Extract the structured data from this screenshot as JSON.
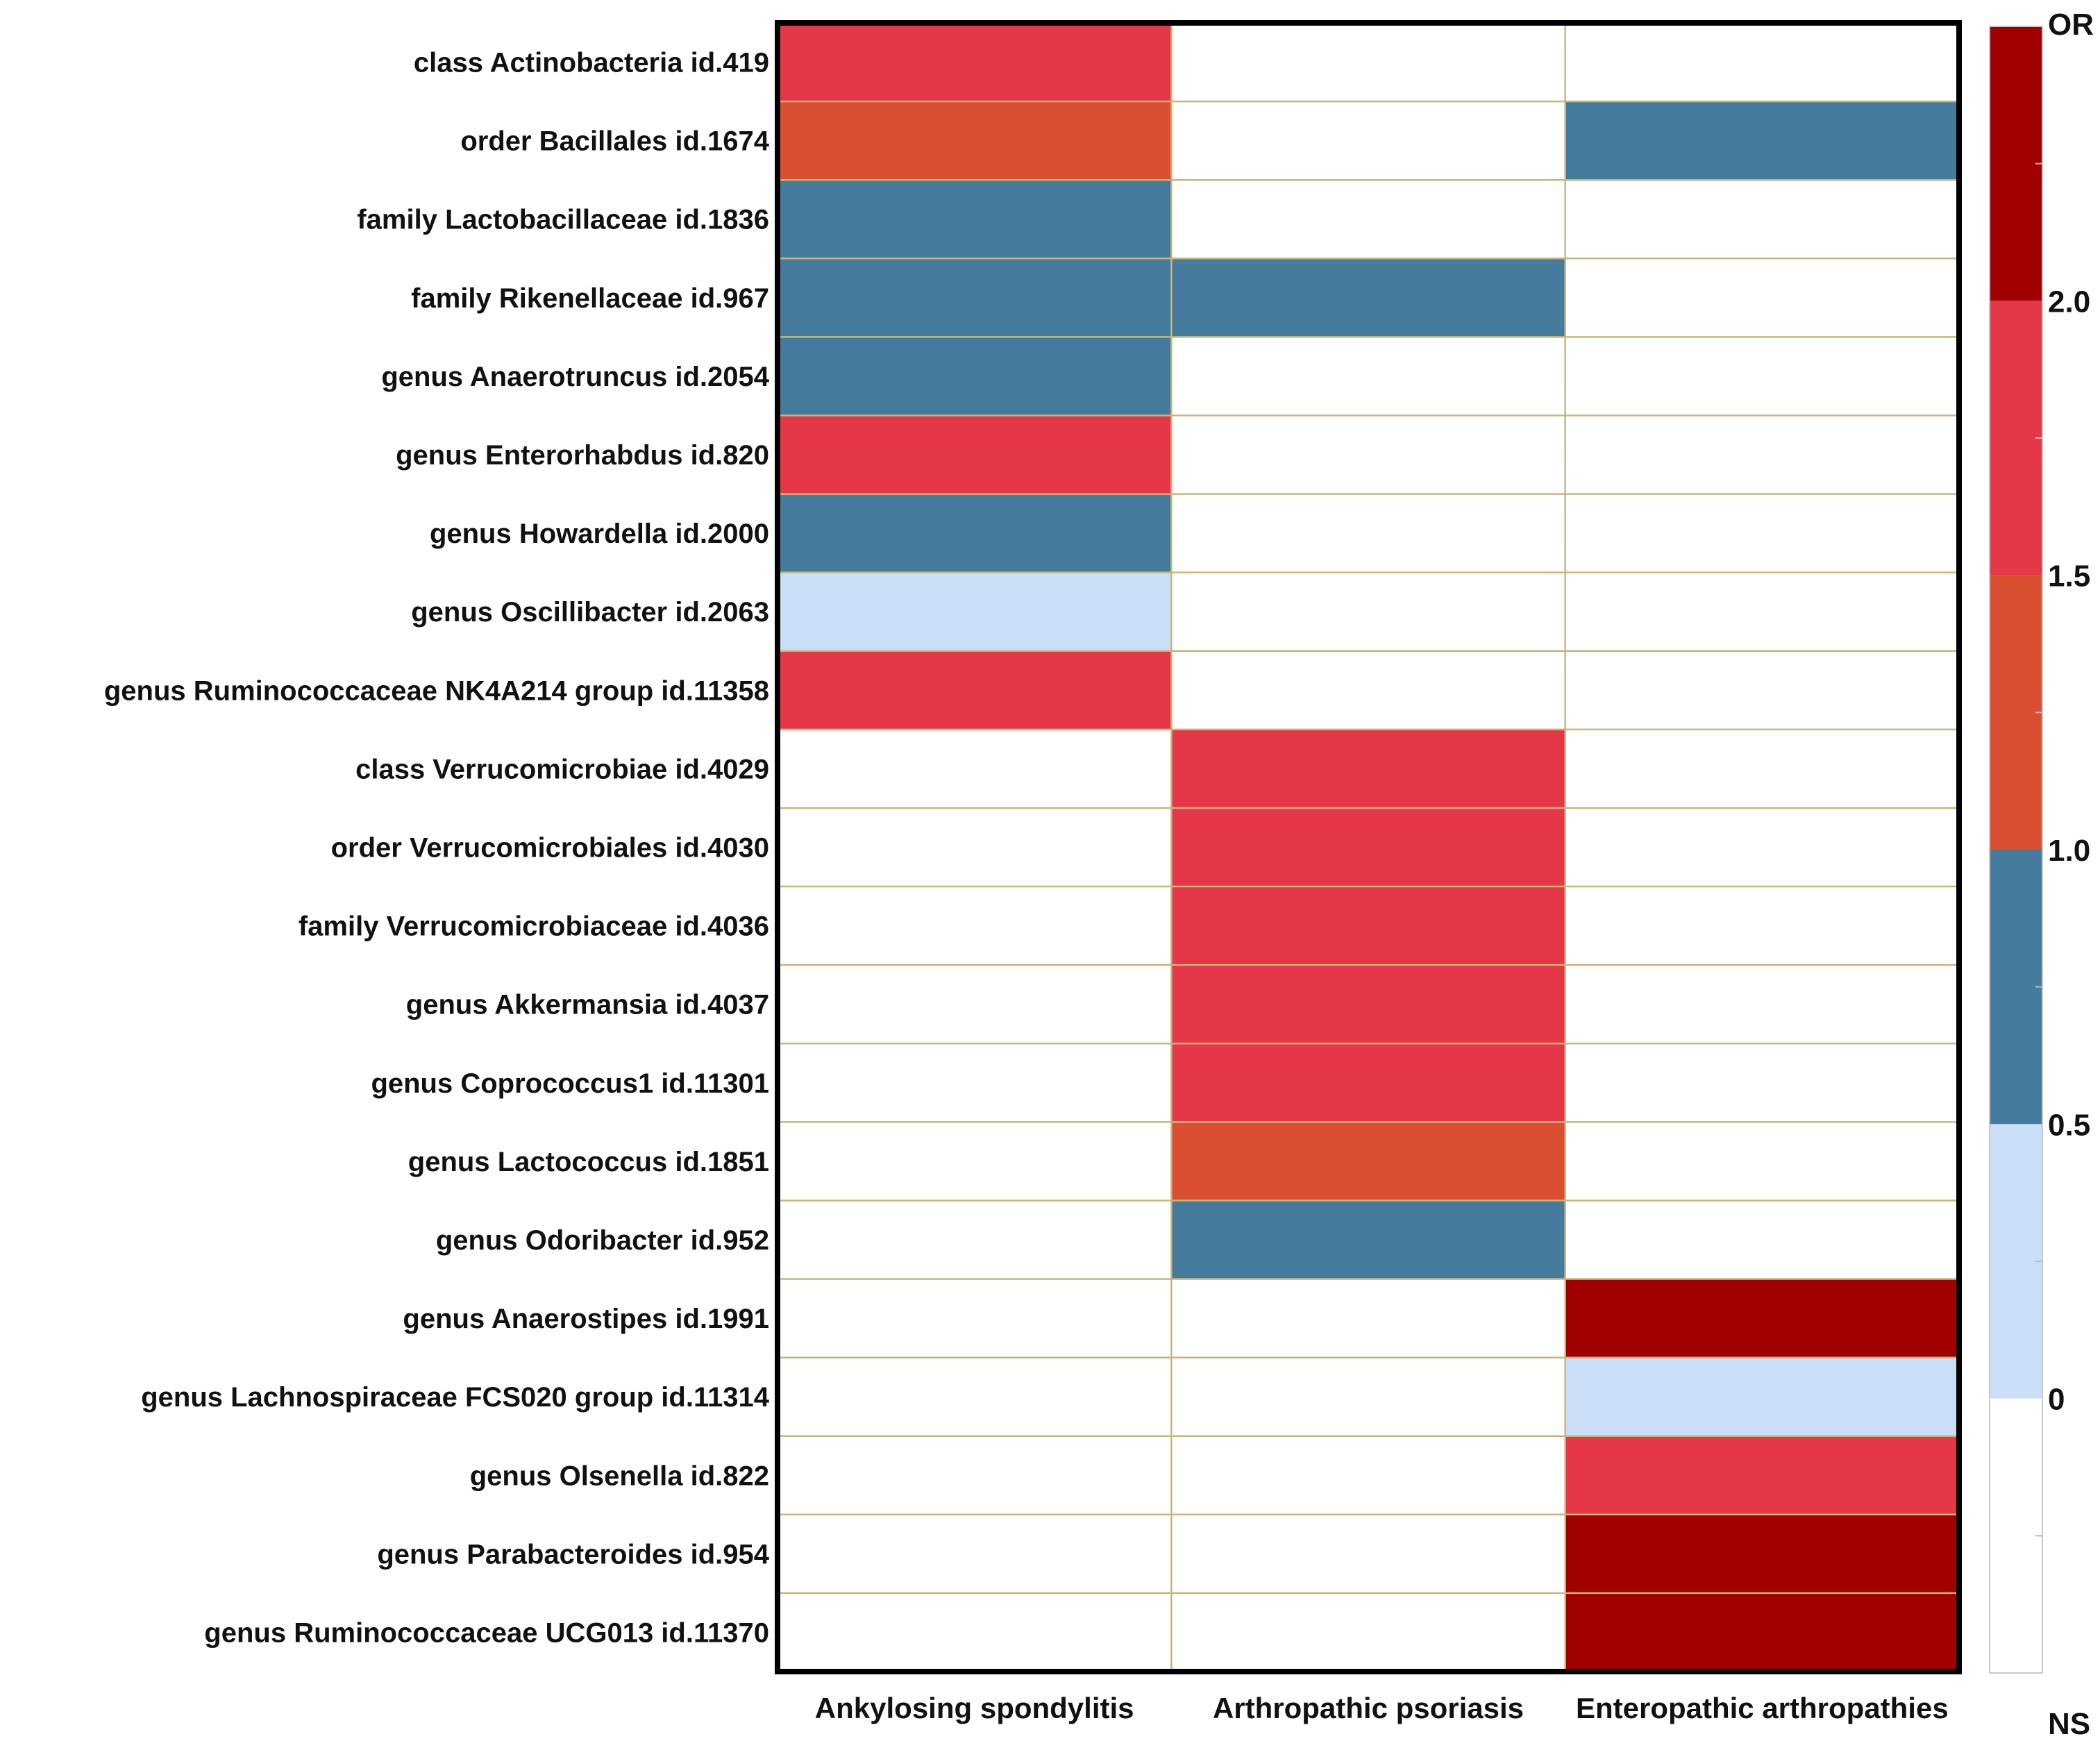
{
  "chart_data": {
    "type": "heatmap",
    "columns": [
      "Ankylosing spondylitis",
      "Arthropathic psoriasis",
      "Enteropathic arthropathies"
    ],
    "rows": [
      "class Actinobacteria id.419",
      "order Bacillales id.1674",
      "family Lactobacillaceae id.1836",
      "family Rikenellaceae id.967",
      "genus Anaerotruncus id.2054",
      "genus Enterorhabdus id.820",
      "genus Howardella id.2000",
      "genus Oscillibacter id.2063",
      "genus Ruminococcaceae NK4A214 group id.11358",
      "class Verrucomicrobiae id.4029",
      "order Verrucomicrobiales id.4030",
      "family Verrucomicrobiaceae id.4036",
      "genus Akkermansia id.4037",
      "genus Coprococcus1 id.11301",
      "genus Lactococcus id.1851",
      "genus Odoribacter id.952",
      "genus Anaerostipes id.1991",
      "genus Lachnospiraceae FCS020 group id.11314",
      "genus Olsenella id.822",
      "genus Parabacteroides id.954",
      "genus Ruminococcaceae UCG013 id.11370"
    ],
    "or_bin_values": [
      [
        1.75,
        null,
        null
      ],
      [
        1.25,
        null,
        0.75
      ],
      [
        0.75,
        null,
        null
      ],
      [
        0.75,
        0.75,
        null
      ],
      [
        0.75,
        null,
        null
      ],
      [
        1.75,
        null,
        null
      ],
      [
        0.75,
        null,
        null
      ],
      [
        0.25,
        null,
        null
      ],
      [
        1.75,
        null,
        null
      ],
      [
        null,
        1.75,
        null
      ],
      [
        null,
        1.75,
        null
      ],
      [
        null,
        1.75,
        null
      ],
      [
        null,
        1.75,
        null
      ],
      [
        null,
        1.75,
        null
      ],
      [
        null,
        1.25,
        null
      ],
      [
        null,
        0.75,
        null
      ],
      [
        null,
        null,
        2.25
      ],
      [
        null,
        null,
        0.25
      ],
      [
        null,
        null,
        1.75
      ],
      [
        null,
        null,
        2.25
      ],
      [
        null,
        null,
        2.25
      ]
    ],
    "legend": {
      "title": "OR",
      "ns_label": "NS",
      "tick_labels": [
        "2.0",
        "1.5",
        "1.0",
        "0.5",
        "0"
      ],
      "tick_values": [
        2.0,
        1.5,
        1.0,
        0.5,
        0
      ],
      "bins": [
        {
          "min": 2.0,
          "max": 2.5,
          "color": "#a00000"
        },
        {
          "min": 1.5,
          "max": 2.0,
          "color": "#e63748"
        },
        {
          "min": 1.0,
          "max": 1.5,
          "color": "#d94f30"
        },
        {
          "min": 0.5,
          "max": 1.0,
          "color": "#457b9d"
        },
        {
          "min": 0.0,
          "max": 0.5,
          "color": "#cbdef8"
        },
        {
          "min": -0.5,
          "max": 0.0,
          "color": "#ffffff"
        }
      ],
      "ns_color": "#ffffff"
    }
  }
}
